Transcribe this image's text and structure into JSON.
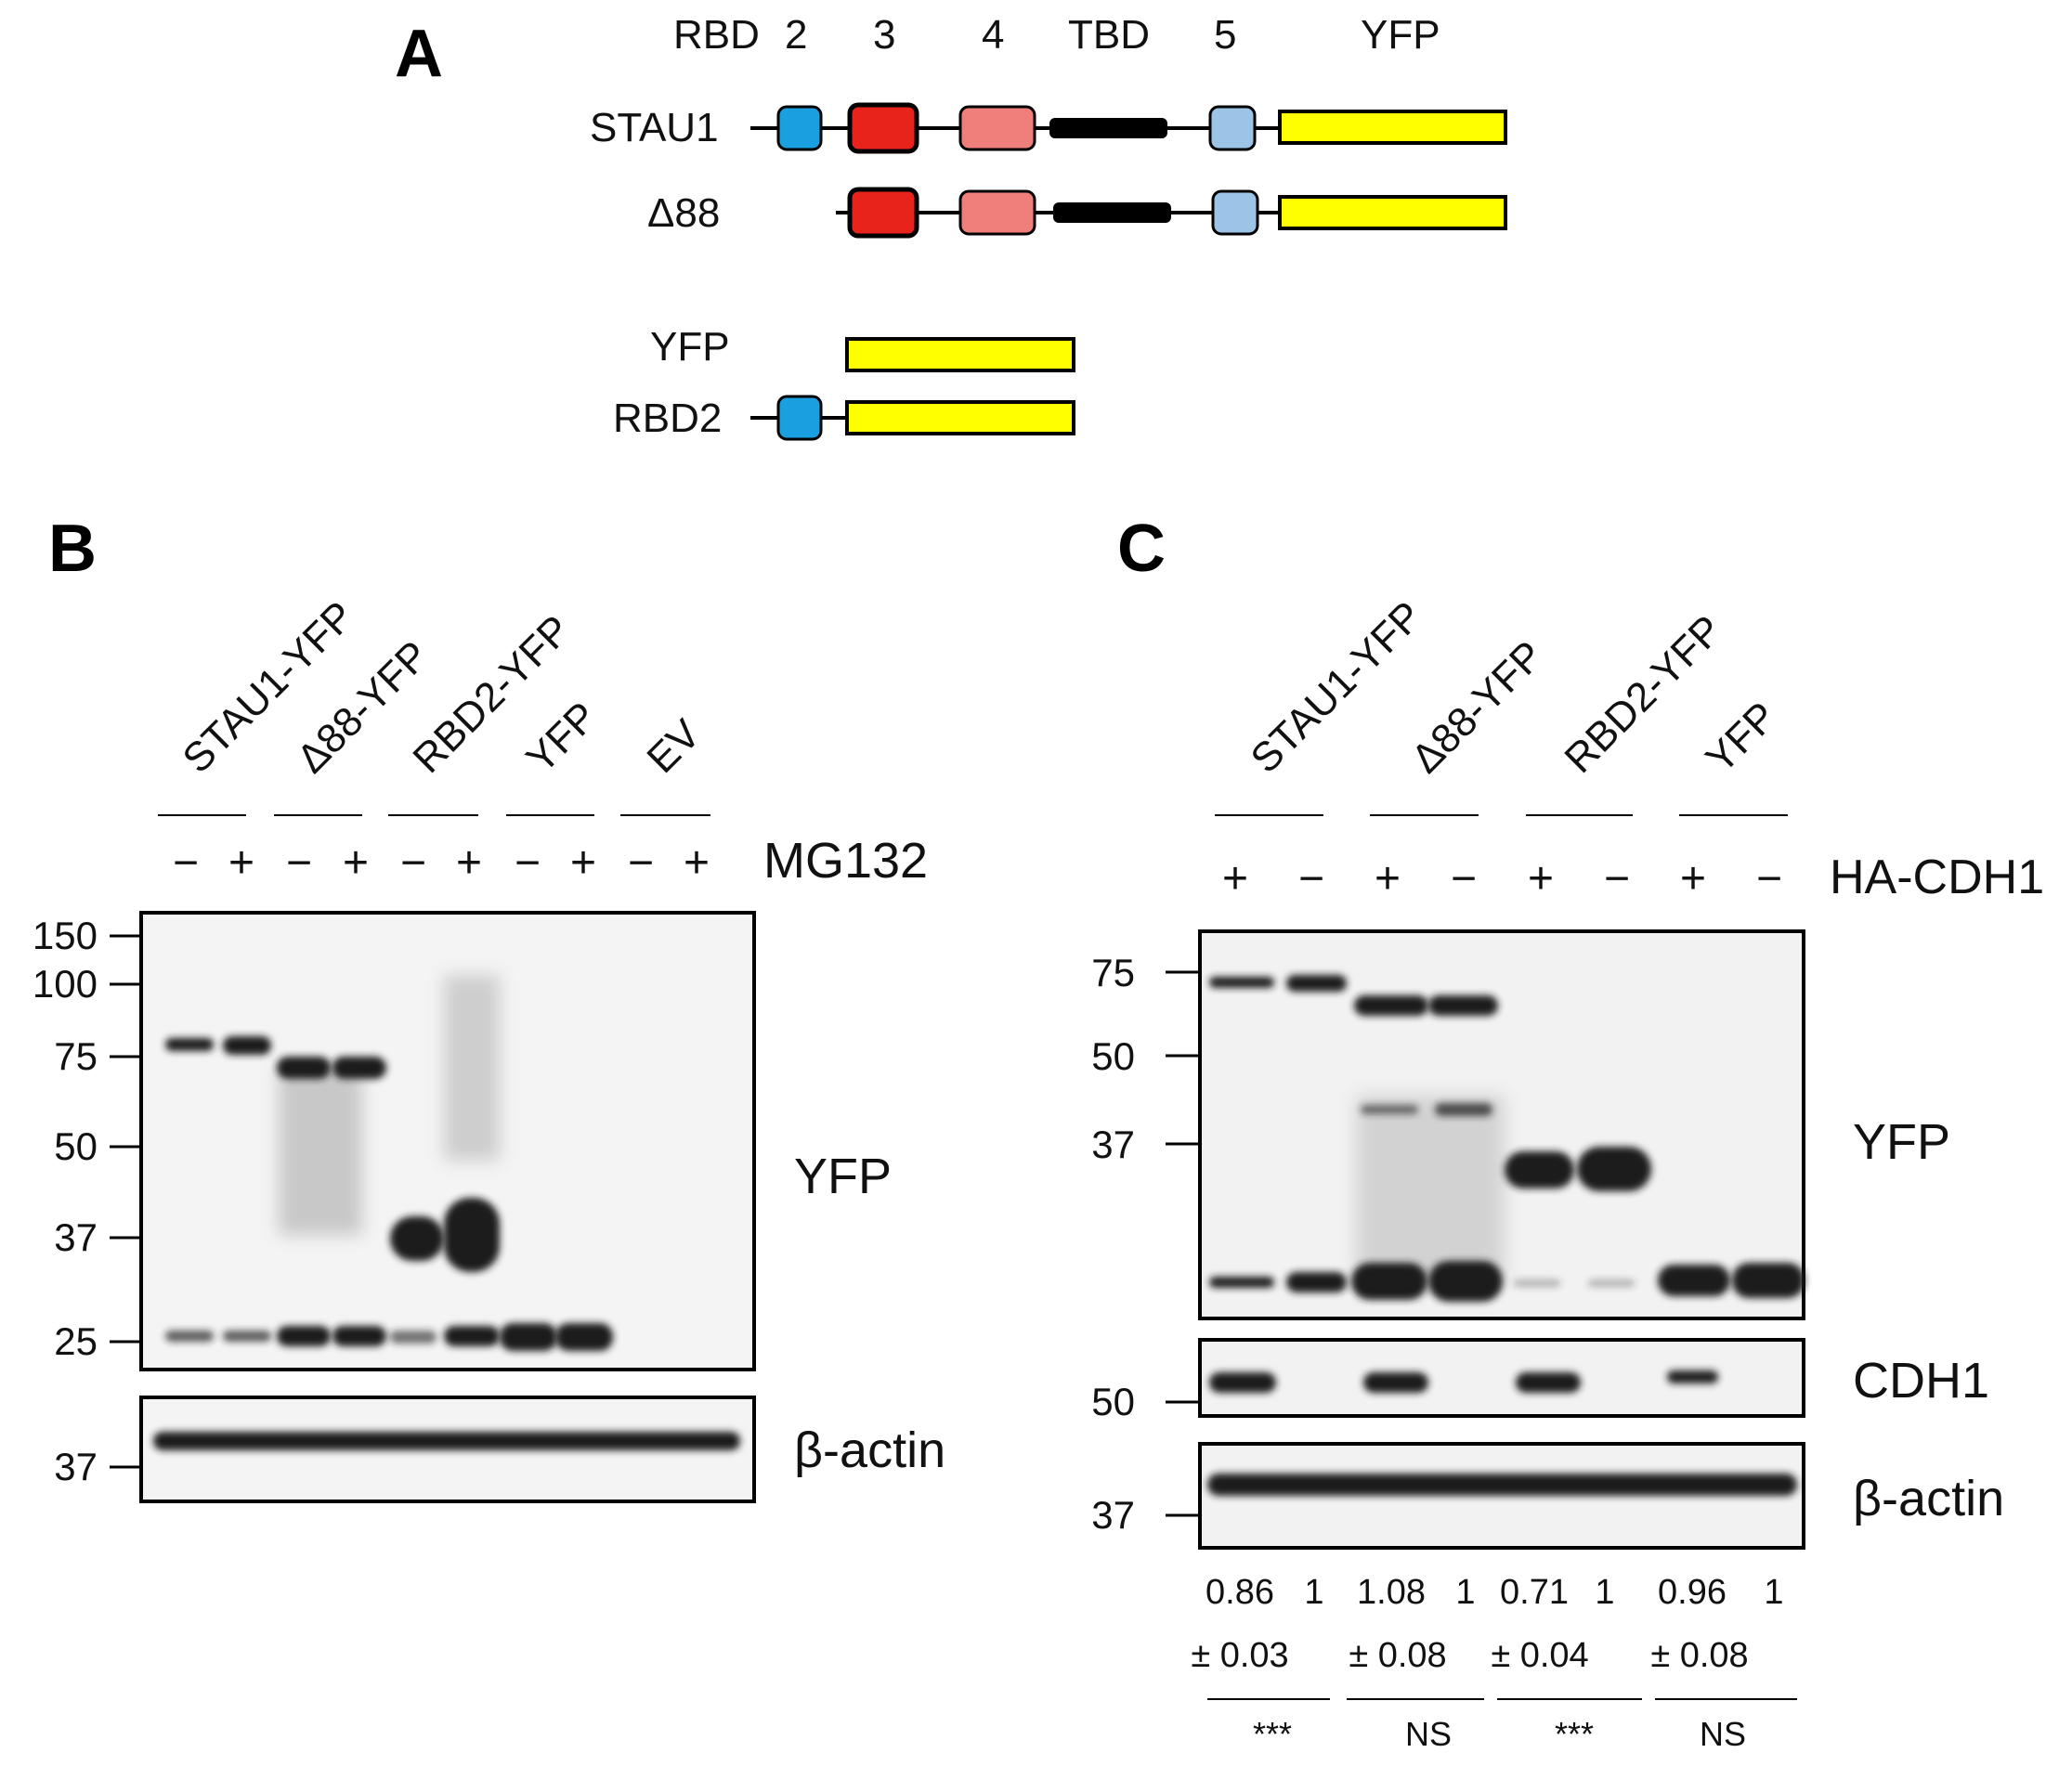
{
  "panel_a": {
    "letter": "A",
    "domain_header": [
      "RBD",
      "2",
      "3",
      "4",
      "TBD",
      "5",
      "YFP"
    ],
    "constructs": [
      "STAU1",
      "Δ88",
      "YFP",
      "RBD2"
    ],
    "colors": {
      "rbd2": "#1aa0e0",
      "rbd3": "#e8231b",
      "rbd4": "#f07f7c",
      "tbd": "#000000",
      "rbd5": "#9cc4e6",
      "yfp": "#ffff00"
    }
  },
  "panel_b": {
    "letter": "B",
    "lane_groups": [
      "STAU1-YFP",
      "Δ88-YFP",
      "RBD2-YFP",
      "YFP",
      "EV"
    ],
    "treatment_signs": [
      "−",
      "+",
      "−",
      "+",
      "−",
      "+",
      "−",
      "+",
      "−",
      "+"
    ],
    "treatment_label": "MG132",
    "blots": [
      {
        "label": "YFP",
        "markers": [
          "150",
          "100",
          "75",
          "50",
          "37",
          "25"
        ]
      },
      {
        "label": "β-actin",
        "markers": [
          "37"
        ]
      }
    ]
  },
  "panel_c": {
    "letter": "C",
    "lane_groups": [
      "STAU1-YFP",
      "Δ88-YFP",
      "RBD2-YFP",
      "YFP"
    ],
    "treatment_signs": [
      "+",
      "−",
      "+",
      "−",
      "+",
      "−",
      "+",
      "−"
    ],
    "treatment_label": "HA-CDH1",
    "blots": [
      {
        "label": "YFP",
        "markers": [
          "75",
          "50",
          "37"
        ]
      },
      {
        "label": "CDH1",
        "markers": [
          "50"
        ]
      },
      {
        "label": "β-actin",
        "markers": [
          "37"
        ]
      }
    ],
    "quant_values": [
      "0.86",
      "1",
      "1.08",
      "1",
      "0.71",
      "1",
      "0.96",
      "1"
    ],
    "quant_errors": [
      "± 0.03",
      "± 0.08",
      "± 0.04",
      "± 0.08"
    ],
    "significance": [
      "***",
      "NS",
      "***",
      "NS"
    ]
  }
}
